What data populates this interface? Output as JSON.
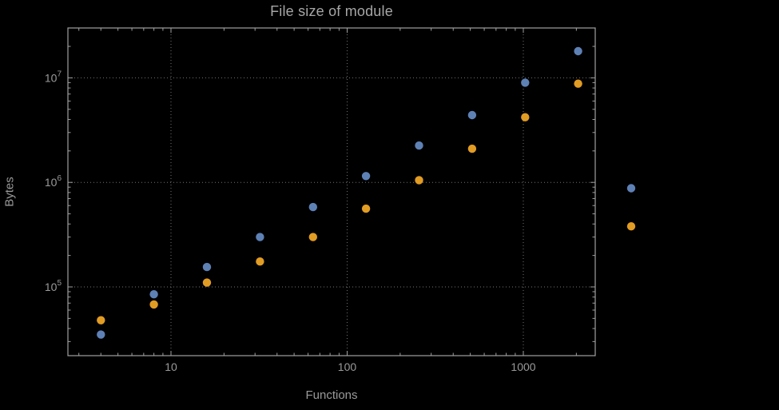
{
  "chart_data": {
    "type": "scatter",
    "title": "File size of module",
    "xlabel": "Functions",
    "ylabel": "Bytes",
    "x_scale": "log",
    "y_scale": "log",
    "xlim": [
      2.6,
      2560
    ],
    "ylim": [
      22000,
      30000000
    ],
    "x_ticks": [
      10,
      100,
      1000
    ],
    "y_tick_exponents": [
      5,
      6,
      7
    ],
    "grid": "dotted-at-major-ticks",
    "legend": "none",
    "background_color": "#000000",
    "frame_color": "#a0a0a0",
    "grid_color": "#737373",
    "label_color": "#9a9a9a",
    "series": [
      {
        "name": "series-1",
        "color": "#5E81B5",
        "points": [
          [
            4,
            35000
          ],
          [
            8,
            85000
          ],
          [
            16,
            155000
          ],
          [
            32,
            300000
          ],
          [
            64,
            580000
          ],
          [
            128,
            1150000
          ],
          [
            256,
            2250000
          ],
          [
            512,
            4400000
          ],
          [
            1024,
            9000000
          ],
          [
            2048,
            18000000
          ],
          [
            4096,
            880000
          ]
        ]
      },
      {
        "name": "series-2",
        "color": "#E19C24",
        "points": [
          [
            4,
            48000
          ],
          [
            8,
            68000
          ],
          [
            16,
            110000
          ],
          [
            32,
            175000
          ],
          [
            64,
            300000
          ],
          [
            128,
            560000
          ],
          [
            256,
            1050000
          ],
          [
            512,
            2100000
          ],
          [
            1024,
            4200000
          ],
          [
            2048,
            8800000
          ],
          [
            4096,
            380000
          ]
        ]
      }
    ]
  }
}
